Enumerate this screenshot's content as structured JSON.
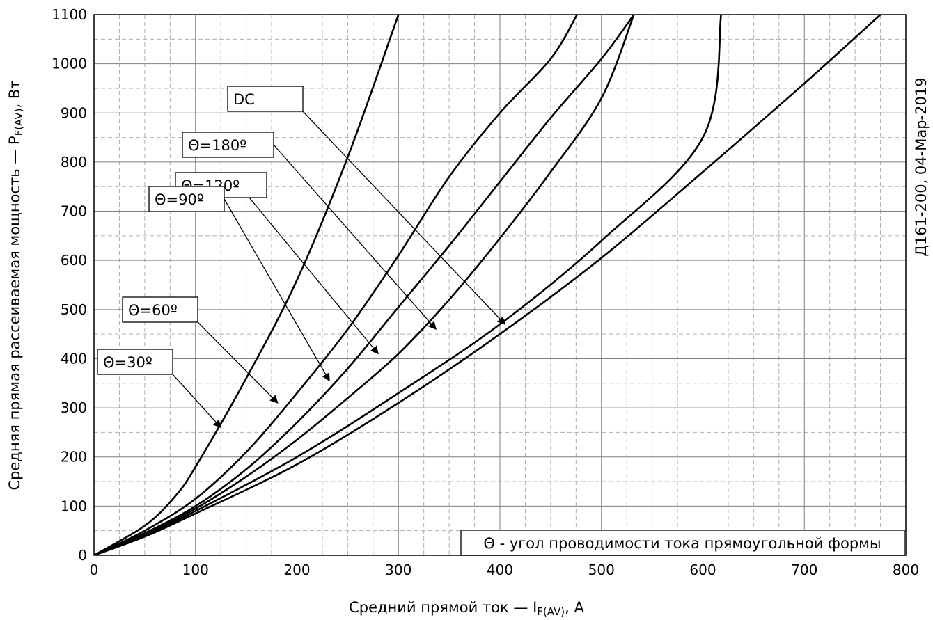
{
  "side_label": "Д161-200, 04-Мар-2019",
  "chart_data": {
    "type": "line",
    "xlabel": "Средний прямой ток — I",
    "xlabel_sub": "F(AV)",
    "xlabel_suffix": ", А",
    "ylabel": "Средняя прямая рассеиваемая мощность — P",
    "ylabel_sub": "F(AV)",
    "ylabel_suffix": ", Вт",
    "xlim": [
      0,
      800
    ],
    "ylim": [
      0,
      1100
    ],
    "x_ticks": [
      0,
      100,
      200,
      300,
      400,
      500,
      600,
      700,
      800
    ],
    "y_ticks": [
      0,
      100,
      200,
      300,
      400,
      500,
      600,
      700,
      800,
      900,
      1000,
      1100
    ],
    "x_minor_step": 25,
    "y_minor_step": 50,
    "grid": true,
    "note": "Θ - угол проводимости тока прямоугольной формы",
    "series": [
      {
        "name": "Θ=30º",
        "x": [
          0,
          50,
          80,
          100,
          150,
          200,
          250,
          300
        ],
        "y": [
          0,
          60,
          120,
          180,
          360,
          560,
          810,
          1100
        ]
      },
      {
        "name": "Θ=60º",
        "x": [
          0,
          50,
          100,
          150,
          200,
          250,
          300,
          350,
          400,
          450,
          476
        ],
        "y": [
          0,
          50,
          115,
          210,
          330,
          460,
          610,
          770,
          900,
          1010,
          1100
        ]
      },
      {
        "name": "Θ=90º",
        "x": [
          0,
          50,
          100,
          150,
          200,
          250,
          300,
          350,
          400,
          450,
          500,
          532
        ],
        "y": [
          0,
          45,
          100,
          175,
          270,
          380,
          505,
          630,
          760,
          890,
          1010,
          1100
        ]
      },
      {
        "name": "Θ=120º",
        "x": [
          0,
          50,
          100,
          150,
          200,
          250,
          300,
          350,
          400,
          450,
          500,
          532
        ],
        "y": [
          0,
          42,
          95,
          160,
          235,
          320,
          410,
          520,
          645,
          780,
          930,
          1100
        ]
      },
      {
        "name": "Θ=180º",
        "x": [
          0,
          50,
          100,
          200,
          300,
          400,
          500,
          600,
          618
        ],
        "y": [
          0,
          40,
          90,
          200,
          330,
          470,
          640,
          850,
          1100
        ]
      },
      {
        "name": "DC",
        "x": [
          0,
          50,
          100,
          200,
          300,
          400,
          500,
          600,
          700,
          775
        ],
        "y": [
          0,
          38,
          85,
          185,
          310,
          450,
          605,
          780,
          960,
          1100
        ]
      }
    ],
    "labels": [
      {
        "text": "DC",
        "series": "DC",
        "arrow_to": [
          405,
          470
        ]
      },
      {
        "text": "Θ=180º",
        "series": "Θ=180º",
        "arrow_to": [
          337,
          460
        ]
      },
      {
        "text": "Θ=120º",
        "series": "Θ=120º",
        "arrow_to": [
          280,
          410
        ]
      },
      {
        "text": "Θ=90º",
        "series": "Θ=90º",
        "arrow_to": [
          232,
          355
        ]
      },
      {
        "text": "Θ=60º",
        "series": "Θ=60º",
        "arrow_to": [
          181,
          310
        ]
      },
      {
        "text": "Θ=30º",
        "series": "Θ=30º",
        "arrow_to": [
          125,
          260
        ]
      }
    ]
  }
}
